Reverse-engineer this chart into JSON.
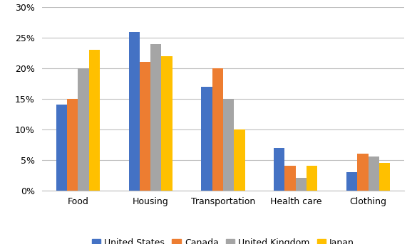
{
  "categories": [
    "Food",
    "Housing",
    "Transportation",
    "Health care",
    "Clothing"
  ],
  "series": {
    "United States": [
      14,
      26,
      17,
      7,
      3
    ],
    "Canada": [
      15,
      21,
      20,
      4,
      6
    ],
    "United Kingdom": [
      20,
      24,
      15,
      2,
      5.5
    ],
    "Japan": [
      23,
      22,
      10,
      4,
      4.5
    ]
  },
  "colors": {
    "United States": "#4472C4",
    "Canada": "#ED7D31",
    "United Kingdom": "#A5A5A5",
    "Japan": "#FFC000"
  },
  "ylim": [
    0,
    30
  ],
  "yticks": [
    0,
    5,
    10,
    15,
    20,
    25,
    30
  ],
  "ytick_labels": [
    "0%",
    "5%",
    "10%",
    "15%",
    "20%",
    "25%",
    "30%"
  ],
  "legend_order": [
    "United States",
    "Canada",
    "United Kingdom",
    "Japan"
  ],
  "bar_width": 0.15,
  "figsize": [
    5.85,
    3.43
  ],
  "dpi": 100,
  "background_color": "#FFFFFF",
  "grid_color": "#BEBEBE",
  "grid_linewidth": 0.8,
  "tick_fontsize": 9,
  "legend_fontsize": 9
}
